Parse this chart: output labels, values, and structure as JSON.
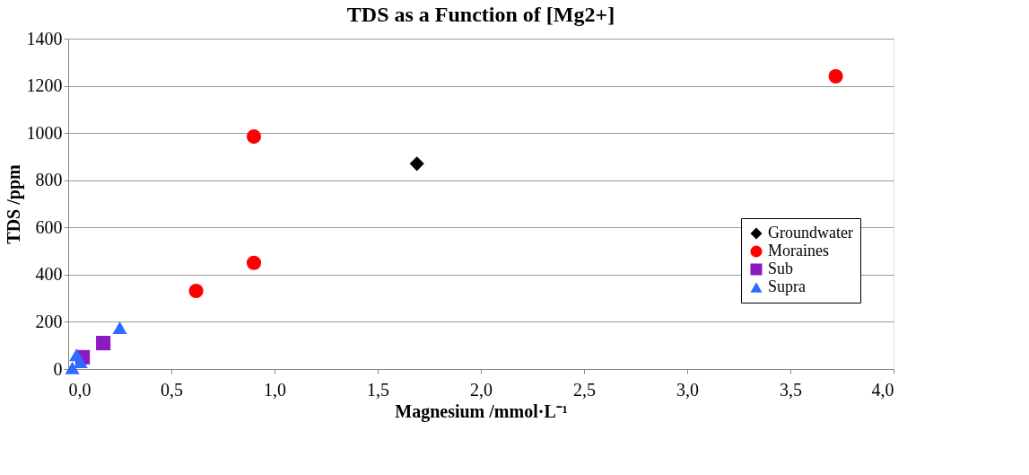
{
  "chart_data": {
    "type": "scatter",
    "title": "TDS as a Function of [Mg2+]",
    "xlabel": "Magnesium /mmol·L⁻¹",
    "ylabel": "TDS /ppm",
    "xlim": [
      0,
      4
    ],
    "xticks": [
      {
        "value": 0,
        "label": "0,0"
      },
      {
        "value": 0.5,
        "label": "0,5"
      },
      {
        "value": 1,
        "label": "1,0"
      },
      {
        "value": 1.5,
        "label": "1,5"
      },
      {
        "value": 2,
        "label": "2,0"
      },
      {
        "value": 2.5,
        "label": "2,5"
      },
      {
        "value": 3,
        "label": "3,0"
      },
      {
        "value": 3.5,
        "label": "3,5"
      },
      {
        "value": 4,
        "label": "4,0"
      }
    ],
    "ylim": [
      0,
      1400
    ],
    "yticks": [
      0,
      200,
      400,
      600,
      800,
      1000,
      1200,
      1400
    ],
    "grid": "y",
    "legend": "right",
    "series": [
      {
        "name": "Groundwater",
        "color": "#000000",
        "marker": "diamond",
        "x": [
          1.69
        ],
        "values": [
          870
        ]
      },
      {
        "name": "Moraines",
        "color": "#ff0000",
        "marker": "circle",
        "x": [
          0.9,
          0.9,
          0.62,
          3.72
        ],
        "values": [
          985,
          450,
          331,
          1240
        ]
      },
      {
        "name": "Sub",
        "color": "#8b1ac4",
        "marker": "square",
        "x": [
          0.07,
          0.17
        ],
        "values": [
          50,
          110
        ]
      },
      {
        "name": "Supra",
        "color": "#2f6bff",
        "marker": "triangle",
        "x": [
          0.04,
          0.02,
          0.06,
          0.25
        ],
        "values": [
          60,
          5,
          30,
          175
        ]
      }
    ]
  }
}
